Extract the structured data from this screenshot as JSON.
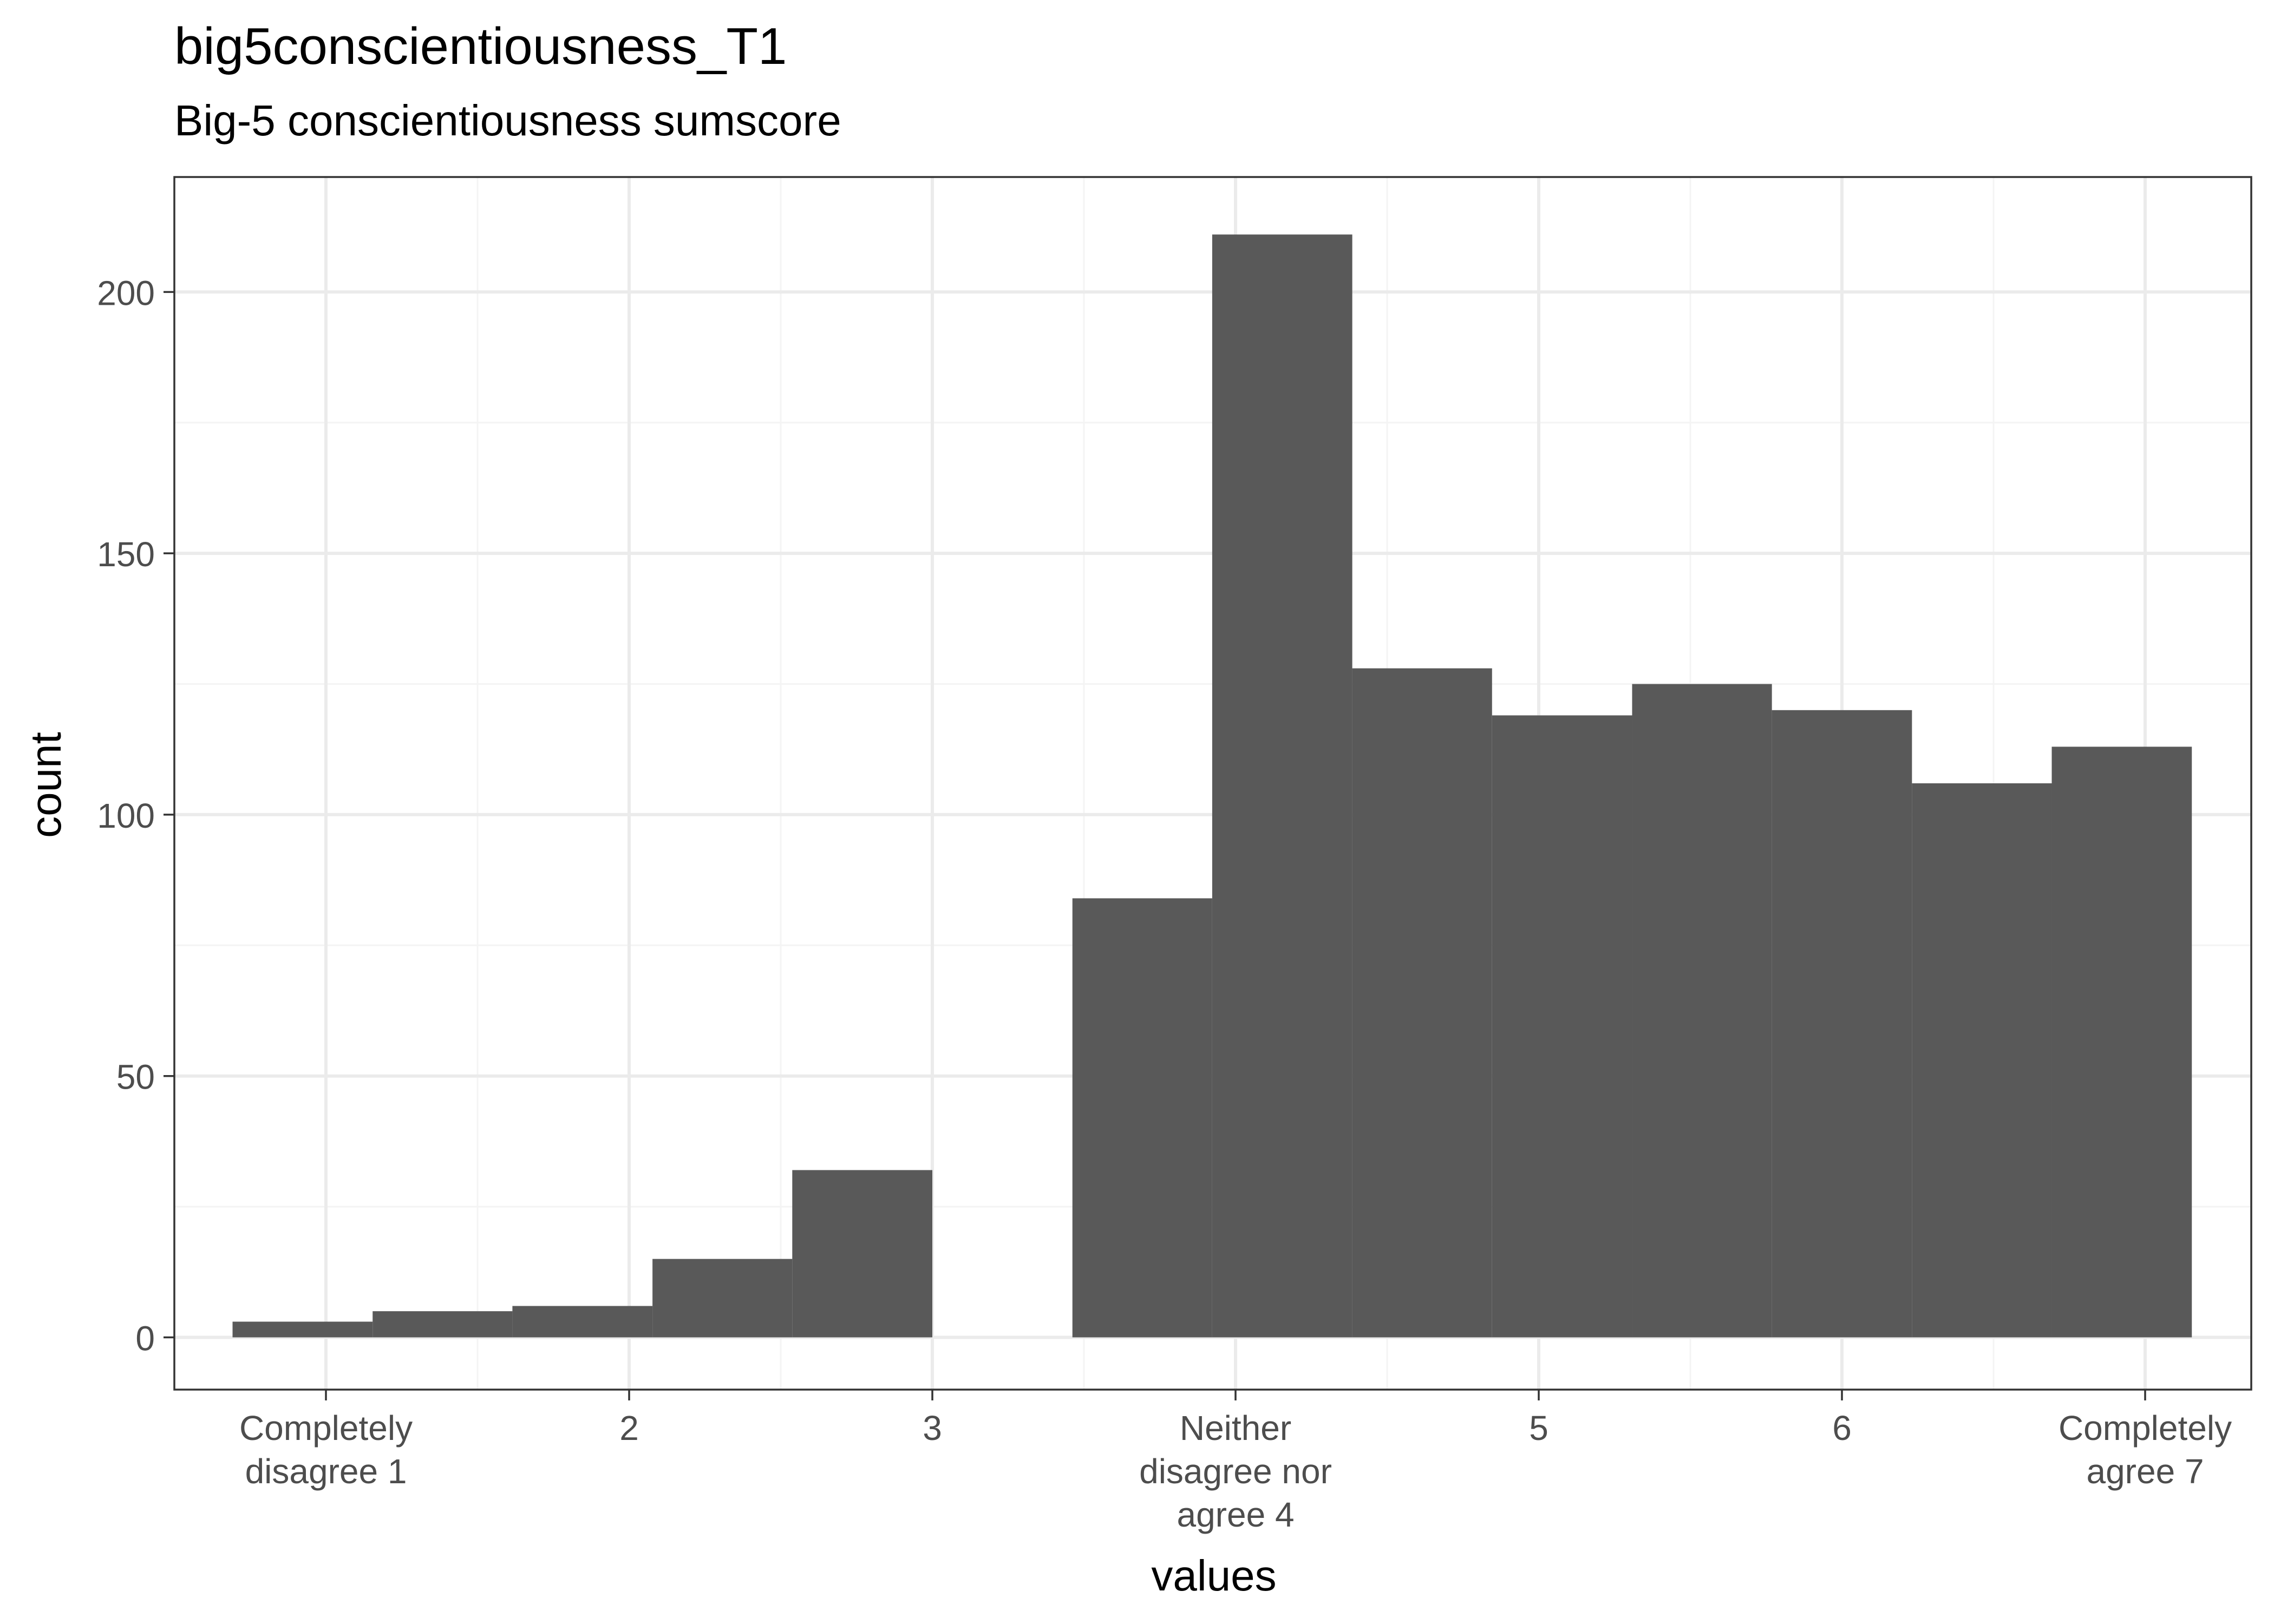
{
  "chart_data": {
    "type": "bar",
    "title": "big5conscientiousness_T1",
    "subtitle": "Big-5 conscientiousness sumscore",
    "xlabel": "values",
    "ylabel": "count",
    "xlim": [
      0.5,
      7.35
    ],
    "ylim": [
      -10,
      222
    ],
    "grid": true,
    "x_ticks": [
      {
        "value": 1,
        "label": [
          "Completely",
          "disagree 1"
        ]
      },
      {
        "value": 2,
        "label": [
          "2"
        ]
      },
      {
        "value": 3,
        "label": [
          "3"
        ]
      },
      {
        "value": 4,
        "label": [
          "Neither",
          "disagree nor",
          "agree 4"
        ]
      },
      {
        "value": 5,
        "label": [
          "5"
        ]
      },
      {
        "value": 6,
        "label": [
          "6"
        ]
      },
      {
        "value": 7,
        "label": [
          "Completely",
          "agree 7"
        ]
      }
    ],
    "y_ticks": [
      0,
      50,
      100,
      150,
      200
    ],
    "bin_width": 0.4615,
    "bars": [
      {
        "x_start": 0.692,
        "x_end": 1.154,
        "count": 3
      },
      {
        "x_start": 1.154,
        "x_end": 1.615,
        "count": 5
      },
      {
        "x_start": 1.615,
        "x_end": 2.077,
        "count": 6
      },
      {
        "x_start": 2.077,
        "x_end": 2.538,
        "count": 15
      },
      {
        "x_start": 2.538,
        "x_end": 3.0,
        "count": 32
      },
      {
        "x_start": 3.0,
        "x_end": 3.462,
        "count": 0
      },
      {
        "x_start": 3.462,
        "x_end": 3.923,
        "count": 84
      },
      {
        "x_start": 3.923,
        "x_end": 4.385,
        "count": 211
      },
      {
        "x_start": 4.385,
        "x_end": 4.846,
        "count": 128
      },
      {
        "x_start": 4.846,
        "x_end": 5.308,
        "count": 119
      },
      {
        "x_start": 5.308,
        "x_end": 5.769,
        "count": 125
      },
      {
        "x_start": 5.769,
        "x_end": 6.231,
        "count": 120
      },
      {
        "x_start": 6.231,
        "x_end": 6.692,
        "count": 106
      },
      {
        "x_start": 6.692,
        "x_end": 7.154,
        "count": 113
      }
    ],
    "colors": {
      "bar": "#595959",
      "grid_major": "#ebebeb",
      "grid_minor": "#f4f4f4",
      "panel_border": "#333333"
    }
  }
}
